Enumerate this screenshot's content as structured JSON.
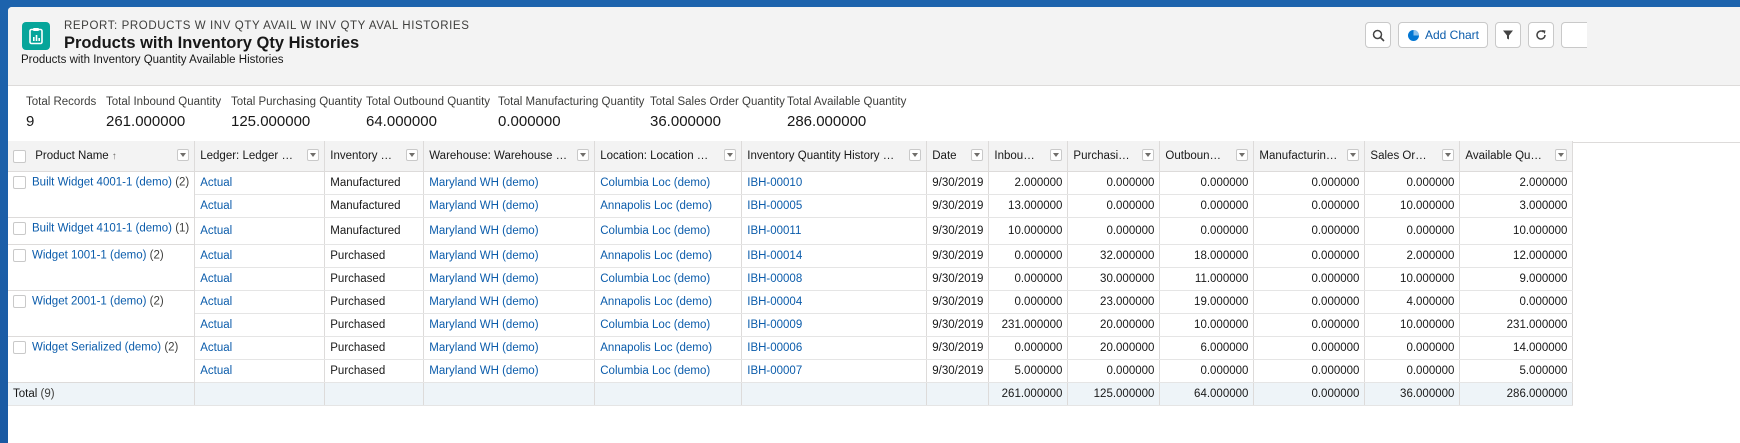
{
  "report": {
    "eyebrow": "REPORT: PRODUCTS W INV QTY AVAIL W INV QTY AVAL HISTORIES",
    "title": "Products with Inventory Qty Histories",
    "subtitle": "Products with Inventory Quantity Available Histories",
    "add_chart_label": "Add Chart"
  },
  "summary": [
    {
      "label": "Total Records",
      "value": "9"
    },
    {
      "label": "Total Inbound Quantity",
      "value": "261.000000"
    },
    {
      "label": "Total Purchasing Quantity",
      "value": "125.000000"
    },
    {
      "label": "Total Outbound Quantity",
      "value": "64.000000"
    },
    {
      "label": "Total Manufacturing Quantity",
      "value": "0.000000"
    },
    {
      "label": "Total Sales Order Quantity",
      "value": "36.000000"
    },
    {
      "label": "Total Available Quantity",
      "value": "286.000000"
    }
  ],
  "columns": [
    "Product Name",
    "Ledger: Ledger Name",
    "Inventory Type",
    "Warehouse: Warehouse Name",
    "Location: Location Name",
    "Inventory Quantity History Name",
    "Date",
    "Inbound...",
    "Purchasing ...",
    "Outbound ...",
    "Manufacturing ...",
    "Sales Order ...",
    "Available Quantity"
  ],
  "sort_arrow": "↑",
  "groups": [
    {
      "product": "Built Widget 4001-1 (demo)",
      "count": "(2)",
      "rows": [
        [
          "Actual",
          "Manufactured",
          "Maryland WH (demo)",
          "Columbia Loc (demo)",
          "IBH-00010",
          "9/30/2019",
          "2.000000",
          "0.000000",
          "0.000000",
          "0.000000",
          "0.000000",
          "2.000000"
        ],
        [
          "Actual",
          "Manufactured",
          "Maryland WH (demo)",
          "Annapolis Loc (demo)",
          "IBH-00005",
          "9/30/2019",
          "13.000000",
          "0.000000",
          "0.000000",
          "0.000000",
          "10.000000",
          "3.000000"
        ]
      ]
    },
    {
      "product": "Built Widget 4101-1 (demo)",
      "count": "(1)",
      "rows": [
        [
          "Actual",
          "Manufactured",
          "Maryland WH (demo)",
          "Columbia Loc (demo)",
          "IBH-00011",
          "9/30/2019",
          "10.000000",
          "0.000000",
          "0.000000",
          "0.000000",
          "0.000000",
          "10.000000"
        ]
      ]
    },
    {
      "product": "Widget 1001-1 (demo)",
      "count": "(2)",
      "rows": [
        [
          "Actual",
          "Purchased",
          "Maryland WH (demo)",
          "Annapolis Loc (demo)",
          "IBH-00014",
          "9/30/2019",
          "0.000000",
          "32.000000",
          "18.000000",
          "0.000000",
          "2.000000",
          "12.000000"
        ],
        [
          "Actual",
          "Purchased",
          "Maryland WH (demo)",
          "Columbia Loc (demo)",
          "IBH-00008",
          "9/30/2019",
          "0.000000",
          "30.000000",
          "11.000000",
          "0.000000",
          "10.000000",
          "9.000000"
        ]
      ]
    },
    {
      "product": "Widget 2001-1 (demo)",
      "count": "(2)",
      "rows": [
        [
          "Actual",
          "Purchased",
          "Maryland WH (demo)",
          "Annapolis Loc (demo)",
          "IBH-00004",
          "9/30/2019",
          "0.000000",
          "23.000000",
          "19.000000",
          "0.000000",
          "4.000000",
          "0.000000"
        ],
        [
          "Actual",
          "Purchased",
          "Maryland WH (demo)",
          "Columbia Loc (demo)",
          "IBH-00009",
          "9/30/2019",
          "231.000000",
          "20.000000",
          "10.000000",
          "0.000000",
          "10.000000",
          "231.000000"
        ]
      ]
    },
    {
      "product": "Widget Serialized (demo)",
      "count": "(2)",
      "rows": [
        [
          "Actual",
          "Purchased",
          "Maryland WH (demo)",
          "Annapolis Loc (demo)",
          "IBH-00006",
          "9/30/2019",
          "0.000000",
          "20.000000",
          "6.000000",
          "0.000000",
          "0.000000",
          "14.000000"
        ],
        [
          "Actual",
          "Purchased",
          "Maryland WH (demo)",
          "Columbia Loc (demo)",
          "IBH-00007",
          "9/30/2019",
          "5.000000",
          "0.000000",
          "0.000000",
          "0.000000",
          "0.000000",
          "5.000000"
        ]
      ]
    }
  ],
  "total_row": {
    "label": "Total",
    "count": "(9)",
    "values": [
      "261.000000",
      "125.000000",
      "64.000000",
      "0.000000",
      "36.000000",
      "286.000000"
    ]
  },
  "icons": [
    "report-icon",
    "search-icon",
    "chart-icon",
    "filter-icon",
    "refresh-icon",
    "checkbox-icon",
    "dropdown-icon"
  ],
  "colors": {
    "accent": "#0b5cab",
    "report_icon": "#06a59a",
    "page_bg": "#1b5fa8"
  }
}
